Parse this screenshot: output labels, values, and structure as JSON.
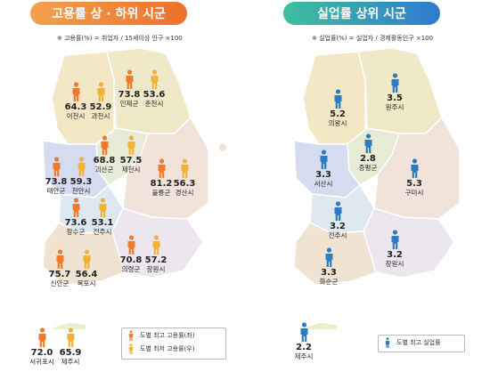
{
  "left_panel": {
    "title": "고용률 상 · 하위 시군",
    "note": "※ 고용률(%) = 취업자 / 15세이상 인구 ×100",
    "markers": [
      {
        "value": "64.3",
        "label": "이천시",
        "type": "high"
      },
      {
        "value": "52.9",
        "label": "과천시",
        "type": "low"
      },
      {
        "value": "73.8",
        "label": "인제군",
        "type": "high"
      },
      {
        "value": "53.6",
        "label": "춘천시",
        "type": "low"
      },
      {
        "value": "68.8",
        "label": "괴산군",
        "type": "high"
      },
      {
        "value": "57.5",
        "label": "제천시",
        "type": "low"
      },
      {
        "value": "73.8",
        "label": "태안군",
        "type": "high"
      },
      {
        "value": "59.3",
        "label": "천안시",
        "type": "low"
      },
      {
        "value": "81.2",
        "label": "울릉군",
        "type": "high"
      },
      {
        "value": "56.3",
        "label": "경산시",
        "type": "low"
      },
      {
        "value": "73.6",
        "label": "장수군",
        "type": "high"
      },
      {
        "value": "53.1",
        "label": "전주시",
        "type": "low"
      },
      {
        "value": "70.8",
        "label": "의령군",
        "type": "high"
      },
      {
        "value": "57.2",
        "label": "창원시",
        "type": "low"
      },
      {
        "value": "75.7",
        "label": "신안군",
        "type": "high"
      },
      {
        "value": "56.4",
        "label": "목포시",
        "type": "low"
      },
      {
        "value": "72.0",
        "label": "서귀포시",
        "type": "high"
      },
      {
        "value": "65.9",
        "label": "제주시",
        "type": "low"
      }
    ],
    "legend": {
      "high": "도별 최고 고용률(좌)",
      "low": "도별 최저 고용률(우)"
    }
  },
  "right_panel": {
    "title": "실업률 상위 시군",
    "note": "※ 실업률(%) = 실업자 / 경제활동인구 ×100",
    "markers": [
      {
        "value": "5.2",
        "label": "의왕시"
      },
      {
        "value": "3.5",
        "label": "원주시"
      },
      {
        "value": "2.8",
        "label": "증평군"
      },
      {
        "value": "3.3",
        "label": "서산시"
      },
      {
        "value": "5.3",
        "label": "구미시"
      },
      {
        "value": "3.2",
        "label": "전주시"
      },
      {
        "value": "3.2",
        "label": "창원시"
      },
      {
        "value": "3.3",
        "label": "화순군"
      },
      {
        "value": "2.2",
        "label": "제주시"
      }
    ],
    "legend": {
      "top": "도별 최고 실업률"
    }
  },
  "colors": {
    "high": "#f07a2a",
    "low": "#f2b233",
    "unemp": "#2a7cc4",
    "gyeonggi": "#f3e7c5",
    "gangwon": "#efe9c8",
    "chungbuk": "#e7ecd6",
    "chungnam": "#d6dcef",
    "jeonbuk": "#dde8f1",
    "jeonnam": "#f1e3d2",
    "gyeongbuk": "#f1e3d9",
    "gyeongnam": "#ece7ef",
    "jeju": "#e9efcf"
  },
  "icons": {
    "person": "person-icon"
  }
}
